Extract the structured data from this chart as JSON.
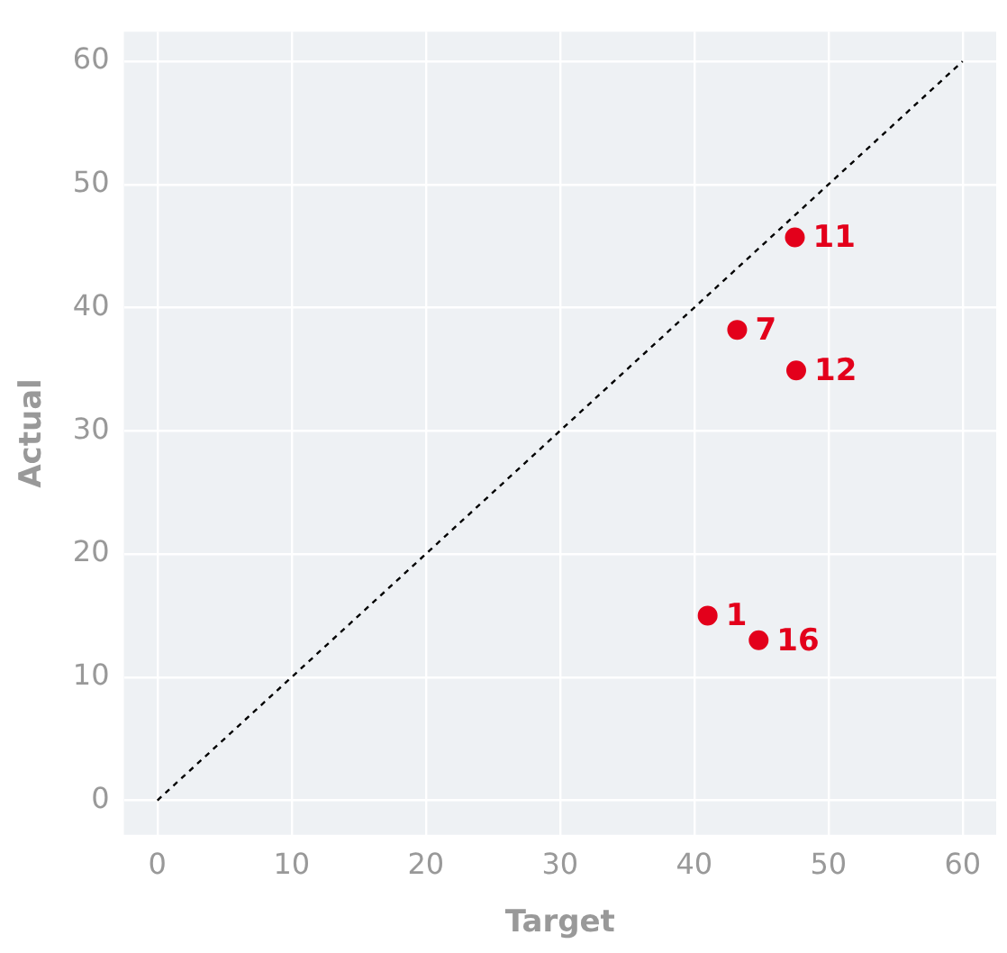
{
  "chart_data": {
    "type": "scatter",
    "xlabel": "Target",
    "ylabel": "Actual",
    "xlim": [
      -2.5,
      62.5
    ],
    "ylim": [
      -2.8,
      62.4
    ],
    "xticks": [
      0,
      10,
      20,
      30,
      40,
      50,
      60
    ],
    "yticks": [
      0,
      10,
      20,
      30,
      40,
      50,
      60
    ],
    "grid": true,
    "legend": false,
    "series": [
      {
        "color": "#e3001b",
        "marker": "circle",
        "x": [
          41.0,
          44.8,
          43.2,
          47.5,
          47.6
        ],
        "values": [
          15.0,
          13.0,
          38.2,
          45.7,
          34.9
        ]
      },
      {
        "type": "line",
        "color": "#000000",
        "line_style": "dashed",
        "marker": "none",
        "x": [
          0,
          60
        ],
        "values": [
          0,
          60
        ]
      }
    ],
    "annotations": [
      {
        "text": "1",
        "x": 41.0,
        "y": 15.0
      },
      {
        "text": "16",
        "x": 44.8,
        "y": 13.0
      },
      {
        "text": "7",
        "x": 43.2,
        "y": 38.2
      },
      {
        "text": "11",
        "x": 47.5,
        "y": 45.7
      },
      {
        "text": "12",
        "x": 47.6,
        "y": 34.9
      }
    ]
  }
}
